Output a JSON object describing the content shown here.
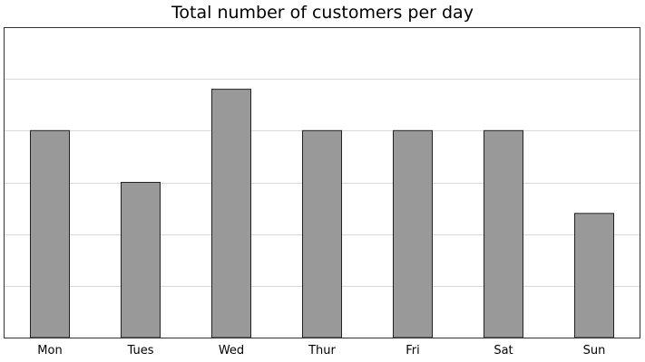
{
  "chart_data": {
    "type": "bar",
    "title": "Total number of customers per day",
    "xlabel": "",
    "ylabel": "",
    "categories": [
      "Mon",
      "Tues",
      "Wed",
      "Thur",
      "Fri",
      "Sat",
      "Sun"
    ],
    "values": [
      4,
      3,
      4.8,
      4,
      4,
      4,
      2.4
    ],
    "ylim": [
      0,
      6
    ],
    "grid": true,
    "legend": "none",
    "colors": {
      "bar_fill": "#999999",
      "bar_stroke": "#222222",
      "grid": "#d9d9d9",
      "frame": "#333333"
    }
  }
}
